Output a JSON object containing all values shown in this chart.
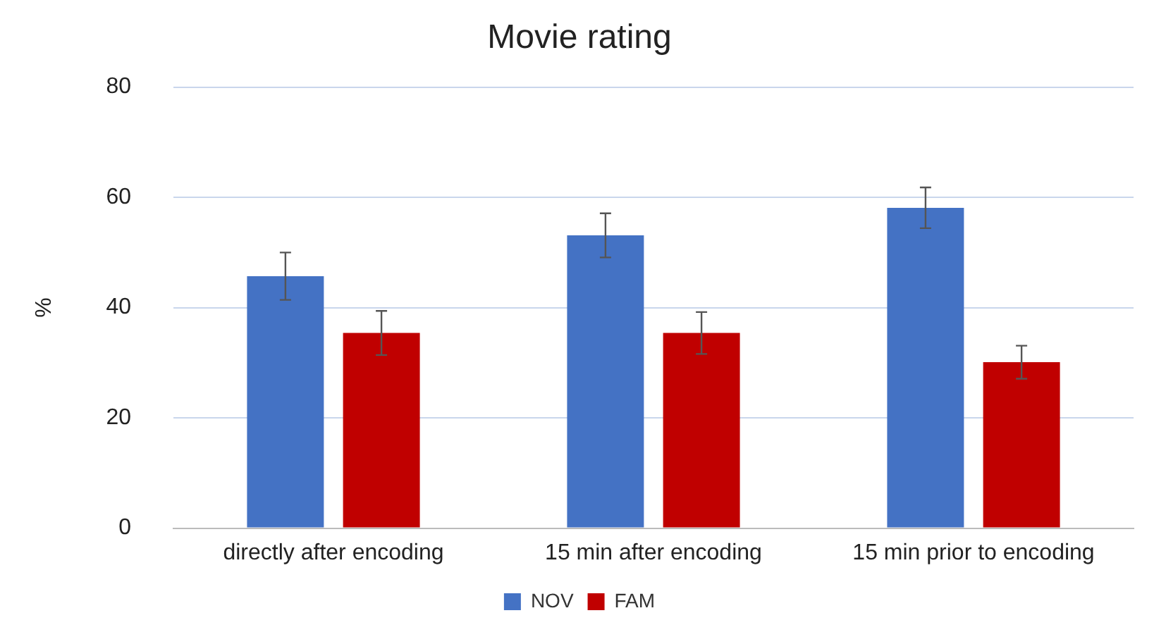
{
  "chart_data": {
    "type": "bar",
    "title": "Movie rating",
    "ylabel": "%",
    "categories": [
      "directly after encoding",
      "15 min after encoding",
      "15 min prior to encoding"
    ],
    "series": [
      {
        "name": "NOV",
        "color": "#4472c4",
        "values": [
          45.7,
          53.1,
          58.1
        ],
        "errors": [
          4.3,
          4,
          3.7
        ]
      },
      {
        "name": "FAM",
        "color": "#c00000",
        "values": [
          35.4,
          35.4,
          30.1
        ],
        "errors": [
          4,
          3.8,
          3
        ]
      }
    ],
    "ylim": [
      0,
      80
    ],
    "yticks": [
      0,
      20,
      40,
      60,
      80
    ],
    "grid": "y",
    "legend": "bottom"
  }
}
